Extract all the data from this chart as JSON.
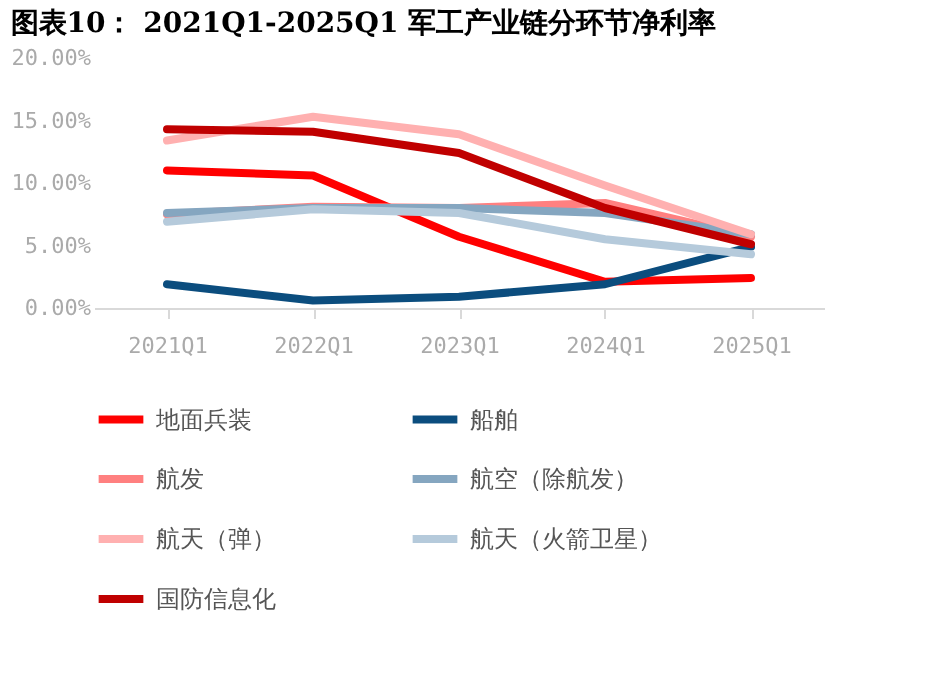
{
  "chart_data": {
    "type": "line",
    "title": "图表10：  2021Q1-2025Q1 军工产业链分环节净利率",
    "categories": [
      "2021Q1",
      "2022Q1",
      "2023Q1",
      "2024Q1",
      "2025Q1"
    ],
    "series": [
      {
        "name": "地面兵装",
        "color": "#ff0000",
        "values": [
          11.0,
          10.6,
          5.7,
          2.1,
          2.4
        ]
      },
      {
        "name": "船舶",
        "color": "#0b4d7e",
        "values": [
          1.9,
          0.6,
          0.9,
          1.9,
          4.9
        ]
      },
      {
        "name": "航发",
        "color": "#ff8080",
        "values": [
          7.5,
          8.1,
          8.0,
          8.4,
          5.7
        ]
      },
      {
        "name": "航空（除航发）",
        "color": "#85a6c0",
        "values": [
          7.6,
          8.0,
          8.0,
          7.6,
          5.9
        ]
      },
      {
        "name": "航天（弹）",
        "color": "#ffb0b0",
        "values": [
          13.4,
          15.3,
          13.9,
          9.8,
          5.9
        ]
      },
      {
        "name": "航天（火箭卫星）",
        "color": "#b5cadb",
        "values": [
          6.9,
          7.9,
          7.6,
          5.5,
          4.3
        ]
      },
      {
        "name": "国防信息化",
        "color": "#c00000",
        "values": [
          14.3,
          14.1,
          12.4,
          8.0,
          5.1
        ]
      }
    ],
    "ylim": [
      0,
      20
    ],
    "yticks": [
      {
        "value": 0,
        "label": "0.00%"
      },
      {
        "value": 5,
        "label": "5.00%"
      },
      {
        "value": 10,
        "label": "10.00%"
      },
      {
        "value": 15,
        "label": "15.00%"
      },
      {
        "value": 20,
        "label": "20.00%"
      }
    ],
    "grid": false,
    "legend": "bottom",
    "marker": "none",
    "line_style": "solid"
  }
}
